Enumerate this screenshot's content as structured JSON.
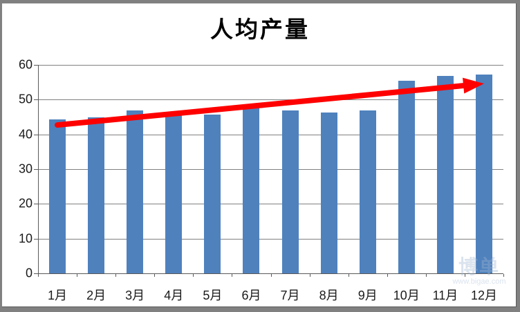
{
  "chart_data": {
    "type": "bar",
    "title": "人均产量",
    "categories": [
      "1月",
      "2月",
      "3月",
      "4月",
      "5月",
      "6月",
      "7月",
      "8月",
      "9月",
      "10月",
      "11月",
      "12月"
    ],
    "values": [
      44.3,
      45.0,
      46.9,
      45.7,
      45.6,
      47.7,
      46.8,
      46.2,
      46.8,
      55.5,
      56.8,
      57.3
    ],
    "xlabel": "",
    "ylabel": "",
    "ylim": [
      0,
      60
    ],
    "yticks": [
      0,
      10,
      20,
      30,
      40,
      50,
      60
    ],
    "grid": true,
    "legend": "none",
    "bar_color": "#4F81BD",
    "gridline_color": "#7f7f7f",
    "axis_color": "#595959",
    "label_color": "#1a1a1a",
    "trend_arrow": {
      "color": "#FF0000",
      "from": {
        "category": "1月",
        "value": 42.7
      },
      "to": {
        "category": "12月",
        "value": 54.6
      }
    }
  },
  "watermark": {
    "text": "博单",
    "subtext": "www.bigae.com"
  }
}
